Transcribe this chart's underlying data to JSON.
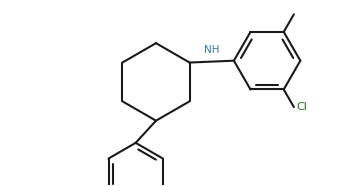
{
  "bg_color": "#ffffff",
  "line_color": "#1a1a1a",
  "line_width": 1.5,
  "NH_color": "#3a7a9a",
  "Cl_color": "#2a6a2a",
  "fig_width": 3.6,
  "fig_height": 1.86,
  "dpi": 100,
  "xlim": [
    -3.5,
    4.8
  ],
  "ylim": [
    -2.8,
    2.2
  ]
}
